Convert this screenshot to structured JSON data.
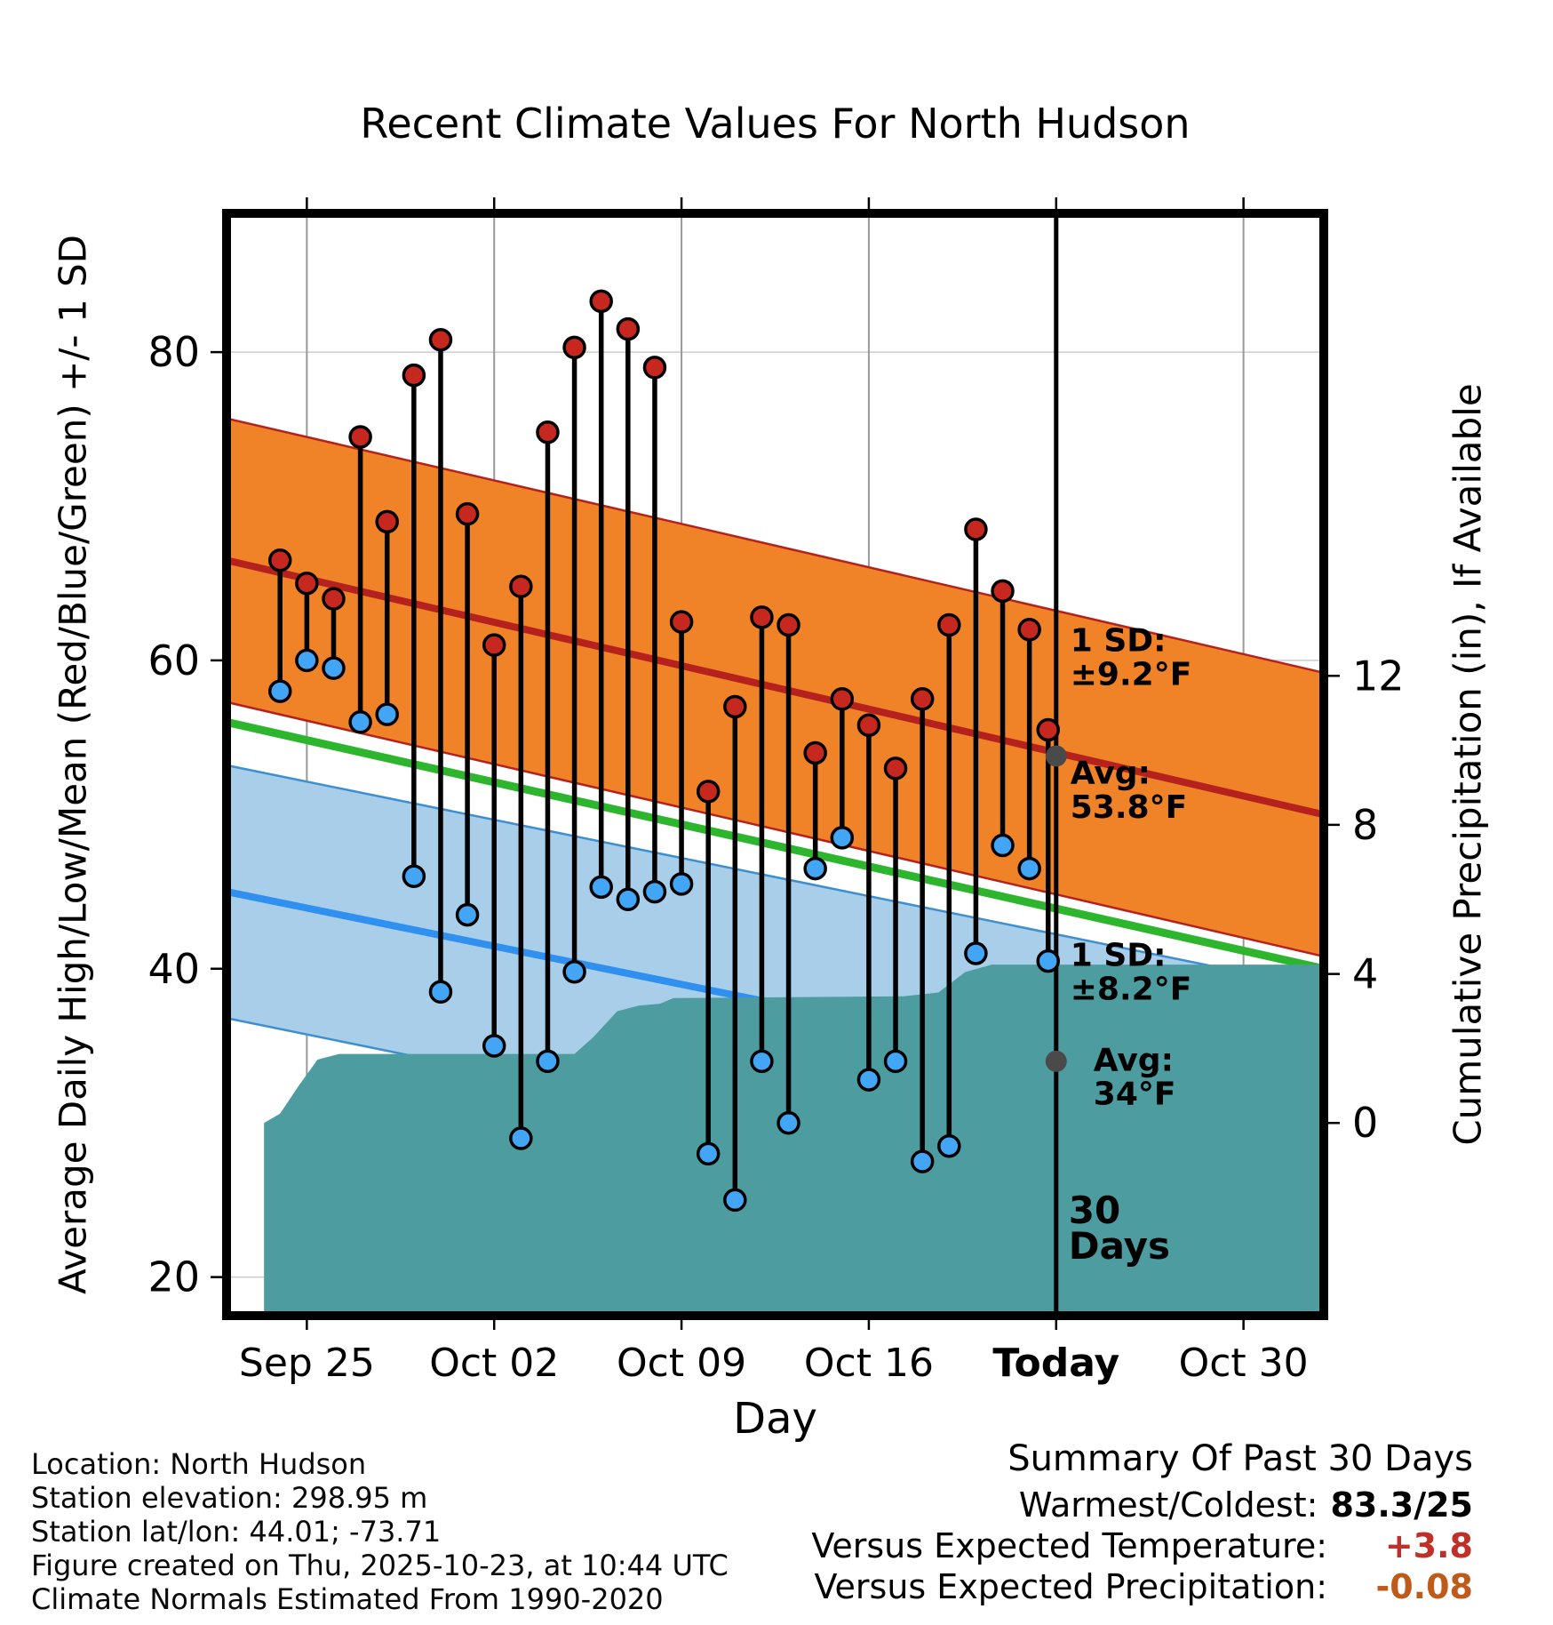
{
  "title": "Recent Climate Values For North Hudson",
  "axes": {
    "left_label": "Average Daily High/Low/Mean (Red/Blue/Green) +/- 1 SD",
    "right_label": "Cumulative Precipitation (in), If Available",
    "x_label": "Day"
  },
  "chart_data": {
    "type": "line",
    "subtype": "daily-high-low-stems-with-climate-normal-bands-and-cumulative-precip",
    "title": "Recent Climate Values For North Hudson",
    "xlabel": "Day",
    "ylabel": "Average Daily High/Low/Mean (Red/Blue/Green) +/- 1 SD",
    "ylabel_right": "Cumulative Precipitation (in), If Available",
    "x_domain": [
      -1,
      40
    ],
    "y_domain": [
      17.5,
      89
    ],
    "x_ticks": [
      {
        "day": 2,
        "label": "Sep 25",
        "bold": false
      },
      {
        "day": 9,
        "label": "Oct 02",
        "bold": false
      },
      {
        "day": 16,
        "label": "Oct 09",
        "bold": false
      },
      {
        "day": 23,
        "label": "Oct 16",
        "bold": false
      },
      {
        "day": 30,
        "label": "Today",
        "bold": true
      },
      {
        "day": 37,
        "label": "Oct 30",
        "bold": false
      }
    ],
    "y_ticks_left": [
      20,
      40,
      60,
      80
    ],
    "y_ticks_right": [
      0,
      4,
      8,
      12
    ],
    "precip_axis": {
      "zero_temp": 30,
      "temp_per_inch": 2.4167
    },
    "normals": {
      "x_start": -1,
      "x_end": 40,
      "high_center_start": 66.5,
      "high_center_end": 50.0,
      "high_sd": 9.2,
      "mean_start": 56.0,
      "mean_end": 40.0,
      "low_center_start": 45.0,
      "low_center_end": 30.5,
      "low_sd": 8.2
    },
    "today_day": 30,
    "daily": [
      {
        "day": 1,
        "high": 66.5,
        "low": 58
      },
      {
        "day": 2,
        "high": 65,
        "low": 60
      },
      {
        "day": 3,
        "high": 64,
        "low": 59.5
      },
      {
        "day": 4,
        "high": 74.5,
        "low": 56
      },
      {
        "day": 5,
        "high": 69,
        "low": 56.5
      },
      {
        "day": 6,
        "high": 78.5,
        "low": 46
      },
      {
        "day": 7,
        "high": 80.8,
        "low": 38.5
      },
      {
        "day": 8,
        "high": 69.5,
        "low": 43.5
      },
      {
        "day": 9,
        "high": 61,
        "low": 35
      },
      {
        "day": 10,
        "high": 64.8,
        "low": 29
      },
      {
        "day": 11,
        "high": 74.8,
        "low": 34
      },
      {
        "day": 12,
        "high": 80.3,
        "low": 39.8
      },
      {
        "day": 13,
        "high": 83.3,
        "low": 45.3
      },
      {
        "day": 14,
        "high": 81.5,
        "low": 44.5
      },
      {
        "day": 15,
        "high": 79,
        "low": 45
      },
      {
        "day": 16,
        "high": 62.5,
        "low": 45.5
      },
      {
        "day": 17,
        "high": 51.5,
        "low": 28
      },
      {
        "day": 18,
        "high": 57,
        "low": 25
      },
      {
        "day": 19,
        "high": 62.8,
        "low": 34
      },
      {
        "day": 20,
        "high": 62.3,
        "low": 30
      },
      {
        "day": 21,
        "high": 54,
        "low": 46.5
      },
      {
        "day": 22,
        "high": 57.5,
        "low": 48.5
      },
      {
        "day": 23,
        "high": 55.8,
        "low": 32.8
      },
      {
        "day": 24,
        "high": 53,
        "low": 34
      },
      {
        "day": 25,
        "high": 57.5,
        "low": 27.5
      },
      {
        "day": 26,
        "high": 62.3,
        "low": 28.5
      },
      {
        "day": 27,
        "high": 68.5,
        "low": 41
      },
      {
        "day": 28,
        "high": 64.5,
        "low": 48
      },
      {
        "day": 29,
        "high": 62,
        "low": 46.5
      },
      {
        "day": 29.7,
        "high": 55.5,
        "low": 40.5
      }
    ],
    "precip_curve": [
      [
        0.4,
        0
      ],
      [
        1.0,
        0.25
      ],
      [
        1.7,
        1.0
      ],
      [
        2.4,
        1.7
      ],
      [
        3.2,
        1.85
      ],
      [
        12.0,
        1.85
      ],
      [
        12.7,
        2.3
      ],
      [
        13.6,
        3.0
      ],
      [
        14.4,
        3.15
      ],
      [
        15.2,
        3.2
      ],
      [
        15.7,
        3.35
      ],
      [
        24.3,
        3.4
      ],
      [
        25.6,
        3.5
      ],
      [
        26.6,
        4.05
      ],
      [
        27.6,
        4.25
      ],
      [
        40,
        4.25
      ]
    ],
    "avg_markers": [
      {
        "day": 30,
        "temp": 53.8
      },
      {
        "day": 30,
        "temp": 34
      }
    ],
    "annotations": {
      "high_sd": [
        "1 SD:",
        "±9.2°F"
      ],
      "high_avg": [
        "Avg:",
        "53.8°F"
      ],
      "low_sd": [
        "1 SD:",
        "±8.2°F"
      ],
      "low_avg": [
        "Avg:",
        "34°F"
      ],
      "today": [
        "30",
        "Days"
      ]
    }
  },
  "colors": {
    "high_band": "#F08228",
    "high_line": "#B5221E",
    "high_dot": "#C62820",
    "mean_line": "#2DB52D",
    "low_band": "#A9CEE9",
    "low_edge": "#3E8FD0",
    "low_line": "#2F90F0",
    "low_dot": "#42A5F5",
    "precip_fill": "#4C9CA0",
    "grid": "#999999",
    "grid_h": "#cccccc",
    "annotation_gray": "#808080",
    "avg_dot": "#4a4a4a",
    "versus_temp": "#C03028",
    "versus_precip": "#C05A1A"
  },
  "footer": {
    "location": "Location: North Hudson",
    "elevation": "Station elevation: 298.95 m",
    "latlon": "Station lat/lon: 44.01; -73.71",
    "created": "Figure created on Thu, 2025-10-23, at 10:44 UTC",
    "normals": "Climate Normals Estimated From 1990-2020"
  },
  "summary": {
    "header": "Summary Of Past 30 Days",
    "rows": [
      {
        "label": "Warmest/Coldest:",
        "value": "83.3/25",
        "color": "#000000"
      },
      {
        "label": "Versus Expected Temperature:",
        "value": "+3.8",
        "color": "#C03028"
      },
      {
        "label": "Versus Expected Precipitation:",
        "value": "-0.08",
        "color": "#C05A1A"
      }
    ]
  }
}
